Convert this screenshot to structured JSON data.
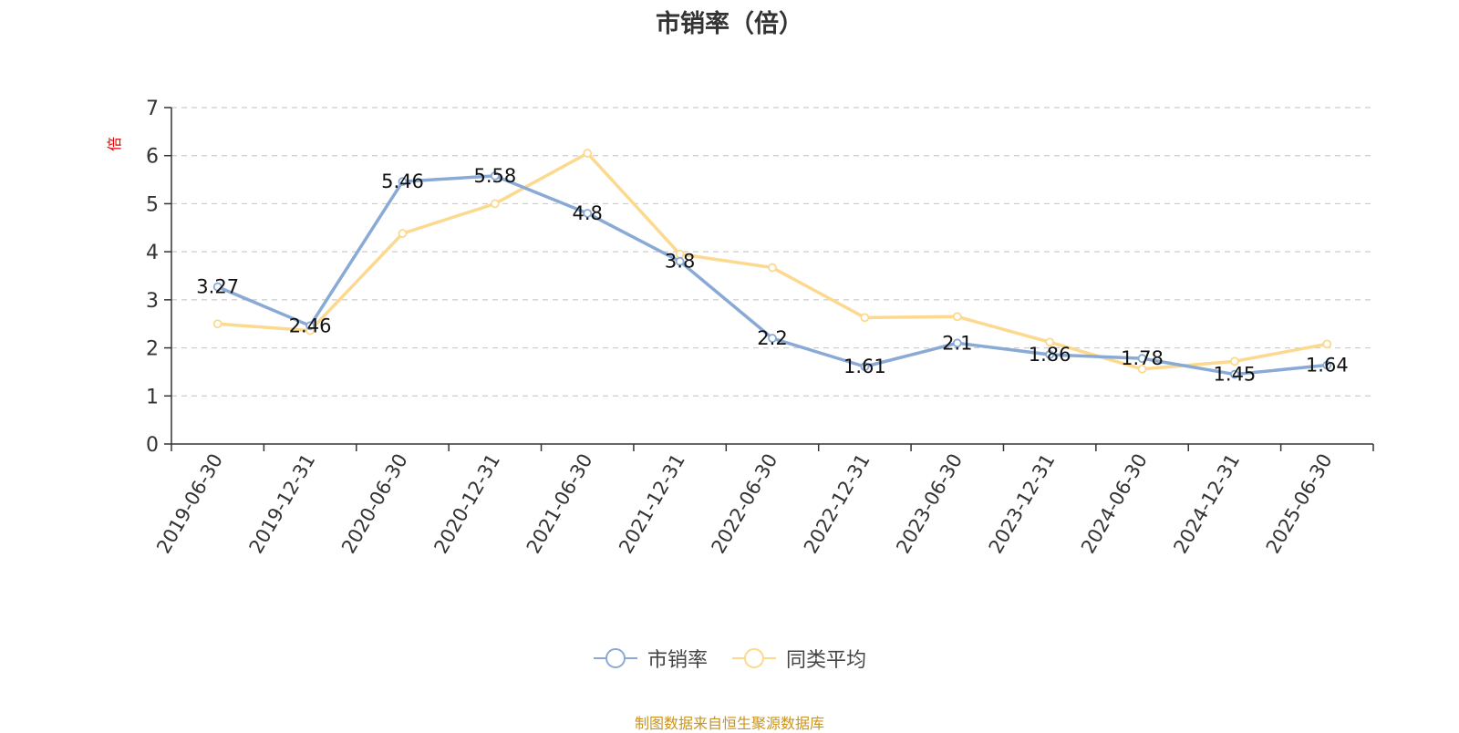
{
  "colors": {
    "series_1": "#8aaad6",
    "series_2": "#fcd98f",
    "unit": "#e60000",
    "source": "#c9941f"
  },
  "source_note": "制图数据来自恒生聚源数据库",
  "chart_data": {
    "type": "line",
    "title": "市销率（倍）",
    "ylabel": "倍",
    "xlabel": "",
    "ylim": [
      0,
      7
    ],
    "yticks": [
      0,
      1,
      2,
      3,
      4,
      5,
      6,
      7
    ],
    "grid": true,
    "legend_position": "bottom",
    "x": [
      "2019-06-30",
      "2019-12-31",
      "2020-06-30",
      "2020-12-31",
      "2021-06-30",
      "2021-12-31",
      "2022-06-30",
      "2022-12-31",
      "2023-06-30",
      "2023-12-31",
      "2024-06-30",
      "2024-12-31",
      "2025-06-30"
    ],
    "series": [
      {
        "name": "市销率",
        "values": [
          3.27,
          2.46,
          5.46,
          5.58,
          4.8,
          3.8,
          2.2,
          1.61,
          2.1,
          1.86,
          1.78,
          1.45,
          1.64
        ],
        "show_labels": true
      },
      {
        "name": "同类平均",
        "values": [
          2.5,
          2.36,
          4.38,
          5.0,
          6.05,
          3.95,
          3.67,
          2.63,
          2.65,
          2.12,
          1.56,
          1.72,
          2.08
        ],
        "show_labels": false
      }
    ]
  }
}
